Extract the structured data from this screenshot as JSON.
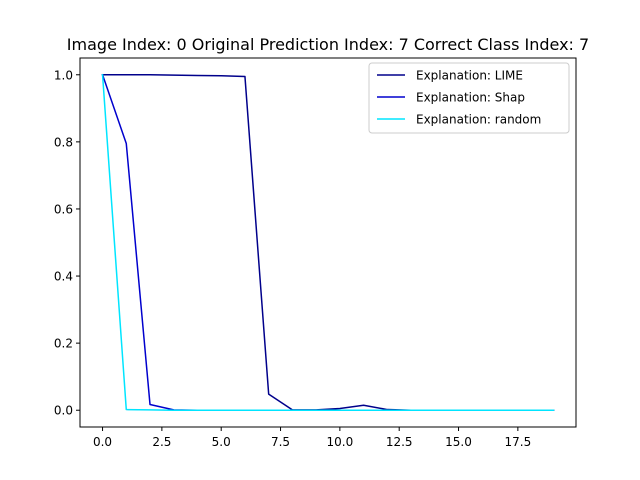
{
  "chart_data": {
    "type": "line",
    "title": "Image Index: 0 Original Prediction Index: 7 Correct Class Index: 7",
    "xlabel": "",
    "ylabel": "",
    "xlim": [
      -0.95,
      19.95
    ],
    "ylim": [
      -0.05,
      1.05
    ],
    "xticks": [
      0,
      2.5,
      5,
      7.5,
      10,
      12.5,
      15,
      17.5
    ],
    "xtick_labels": [
      "0.0",
      "2.5",
      "5.0",
      "7.5",
      "10.0",
      "12.5",
      "15.0",
      "17.5"
    ],
    "yticks": [
      0,
      0.2,
      0.4,
      0.6,
      0.8,
      1.0
    ],
    "ytick_labels": [
      "0.0",
      "0.2",
      "0.4",
      "0.6",
      "0.8",
      "1.0"
    ],
    "grid": false,
    "legend_position": "top-right",
    "x": [
      0,
      1,
      2,
      3,
      4,
      5,
      6,
      7,
      8,
      9,
      10,
      11,
      12,
      13,
      14,
      15,
      16,
      17,
      18,
      19
    ],
    "series": [
      {
        "name": "Explanation: LIME",
        "color": "#00008b",
        "values": [
          1.0,
          1.0,
          1.0,
          0.999,
          0.998,
          0.997,
          0.995,
          0.048,
          0.001,
          0.001,
          0.005,
          0.015,
          0.002,
          0.0,
          0.0,
          0.0,
          0.0,
          0.0,
          0.0,
          0.0
        ]
      },
      {
        "name": "Explanation: Shap",
        "color": "#0000cd",
        "values": [
          1.0,
          0.795,
          0.017,
          0.001,
          0.0,
          0.0,
          0.0,
          0.0,
          0.0,
          0.0,
          0.0,
          0.0,
          0.0,
          0.0,
          0.0,
          0.0,
          0.0,
          0.0,
          0.0,
          0.0
        ]
      },
      {
        "name": "Explanation: random",
        "color": "#00e5ff",
        "values": [
          1.0,
          0.002,
          0.001,
          0.0,
          0.0,
          0.0,
          0.0,
          0.0,
          0.0,
          0.0,
          0.0,
          0.0,
          0.0,
          0.0,
          0.0,
          0.0,
          0.0,
          0.0,
          0.0,
          0.0
        ]
      }
    ]
  }
}
